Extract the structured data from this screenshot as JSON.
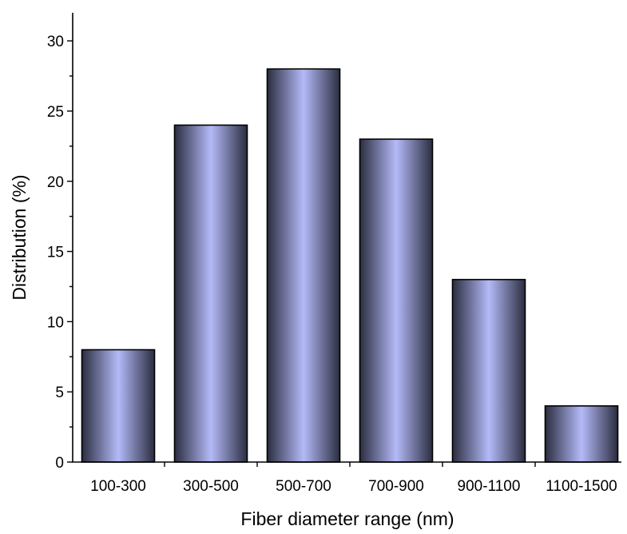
{
  "chart_data": {
    "type": "bar",
    "title": "",
    "xlabel": "Fiber diameter range (nm)",
    "ylabel": "Distribution (%)",
    "categories": [
      "100-300",
      "300-500",
      "500-700",
      "700-900",
      "900-1100",
      "1100-1500"
    ],
    "values": [
      8,
      24,
      28,
      23,
      13,
      4
    ],
    "ylim": [
      0,
      32
    ],
    "yticks": [
      "0",
      "5",
      "10",
      "15",
      "20",
      "25",
      "30"
    ],
    "grid": false,
    "legend": "none",
    "bar_colors": {
      "edge": "#2b2d40",
      "center": "#b4baf8",
      "outline": "#000000"
    }
  }
}
